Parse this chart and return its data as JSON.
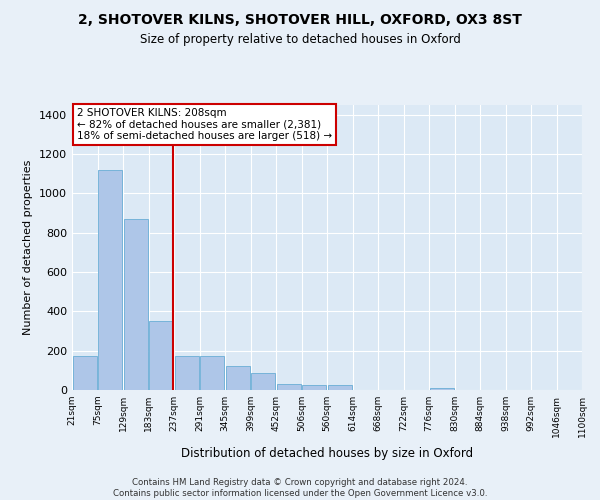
{
  "title": "2, SHOTOVER KILNS, SHOTOVER HILL, OXFORD, OX3 8ST",
  "subtitle": "Size of property relative to detached houses in Oxford",
  "xlabel": "Distribution of detached houses by size in Oxford",
  "ylabel": "Number of detached properties",
  "footer": "Contains HM Land Registry data © Crown copyright and database right 2024.\nContains public sector information licensed under the Open Government Licence v3.0.",
  "bin_labels": [
    "21sqm",
    "75sqm",
    "129sqm",
    "183sqm",
    "237sqm",
    "291sqm",
    "345sqm",
    "399sqm",
    "452sqm",
    "506sqm",
    "560sqm",
    "614sqm",
    "668sqm",
    "722sqm",
    "776sqm",
    "830sqm",
    "884sqm",
    "938sqm",
    "992sqm",
    "1046sqm",
    "1100sqm"
  ],
  "bar_values": [
    175,
    1120,
    870,
    350,
    175,
    175,
    120,
    85,
    30,
    25,
    25,
    0,
    0,
    0,
    10,
    0,
    0,
    0,
    0,
    0
  ],
  "bar_color": "#aec6e8",
  "bar_edge_color": "#6aaed6",
  "vline_color": "#cc0000",
  "annotation_line1": "2 SHOTOVER KILNS: 208sqm",
  "annotation_line2": "← 82% of detached houses are smaller (2,381)",
  "annotation_line3": "18% of semi-detached houses are larger (518) →",
  "annotation_box_color": "#ffffff",
  "annotation_box_edge": "#cc0000",
  "ylim": [
    0,
    1450
  ],
  "yticks": [
    0,
    200,
    400,
    600,
    800,
    1000,
    1200,
    1400
  ],
  "bg_color": "#e8f0f8",
  "plot_bg_color": "#dce9f5",
  "vline_pos": 3.47
}
